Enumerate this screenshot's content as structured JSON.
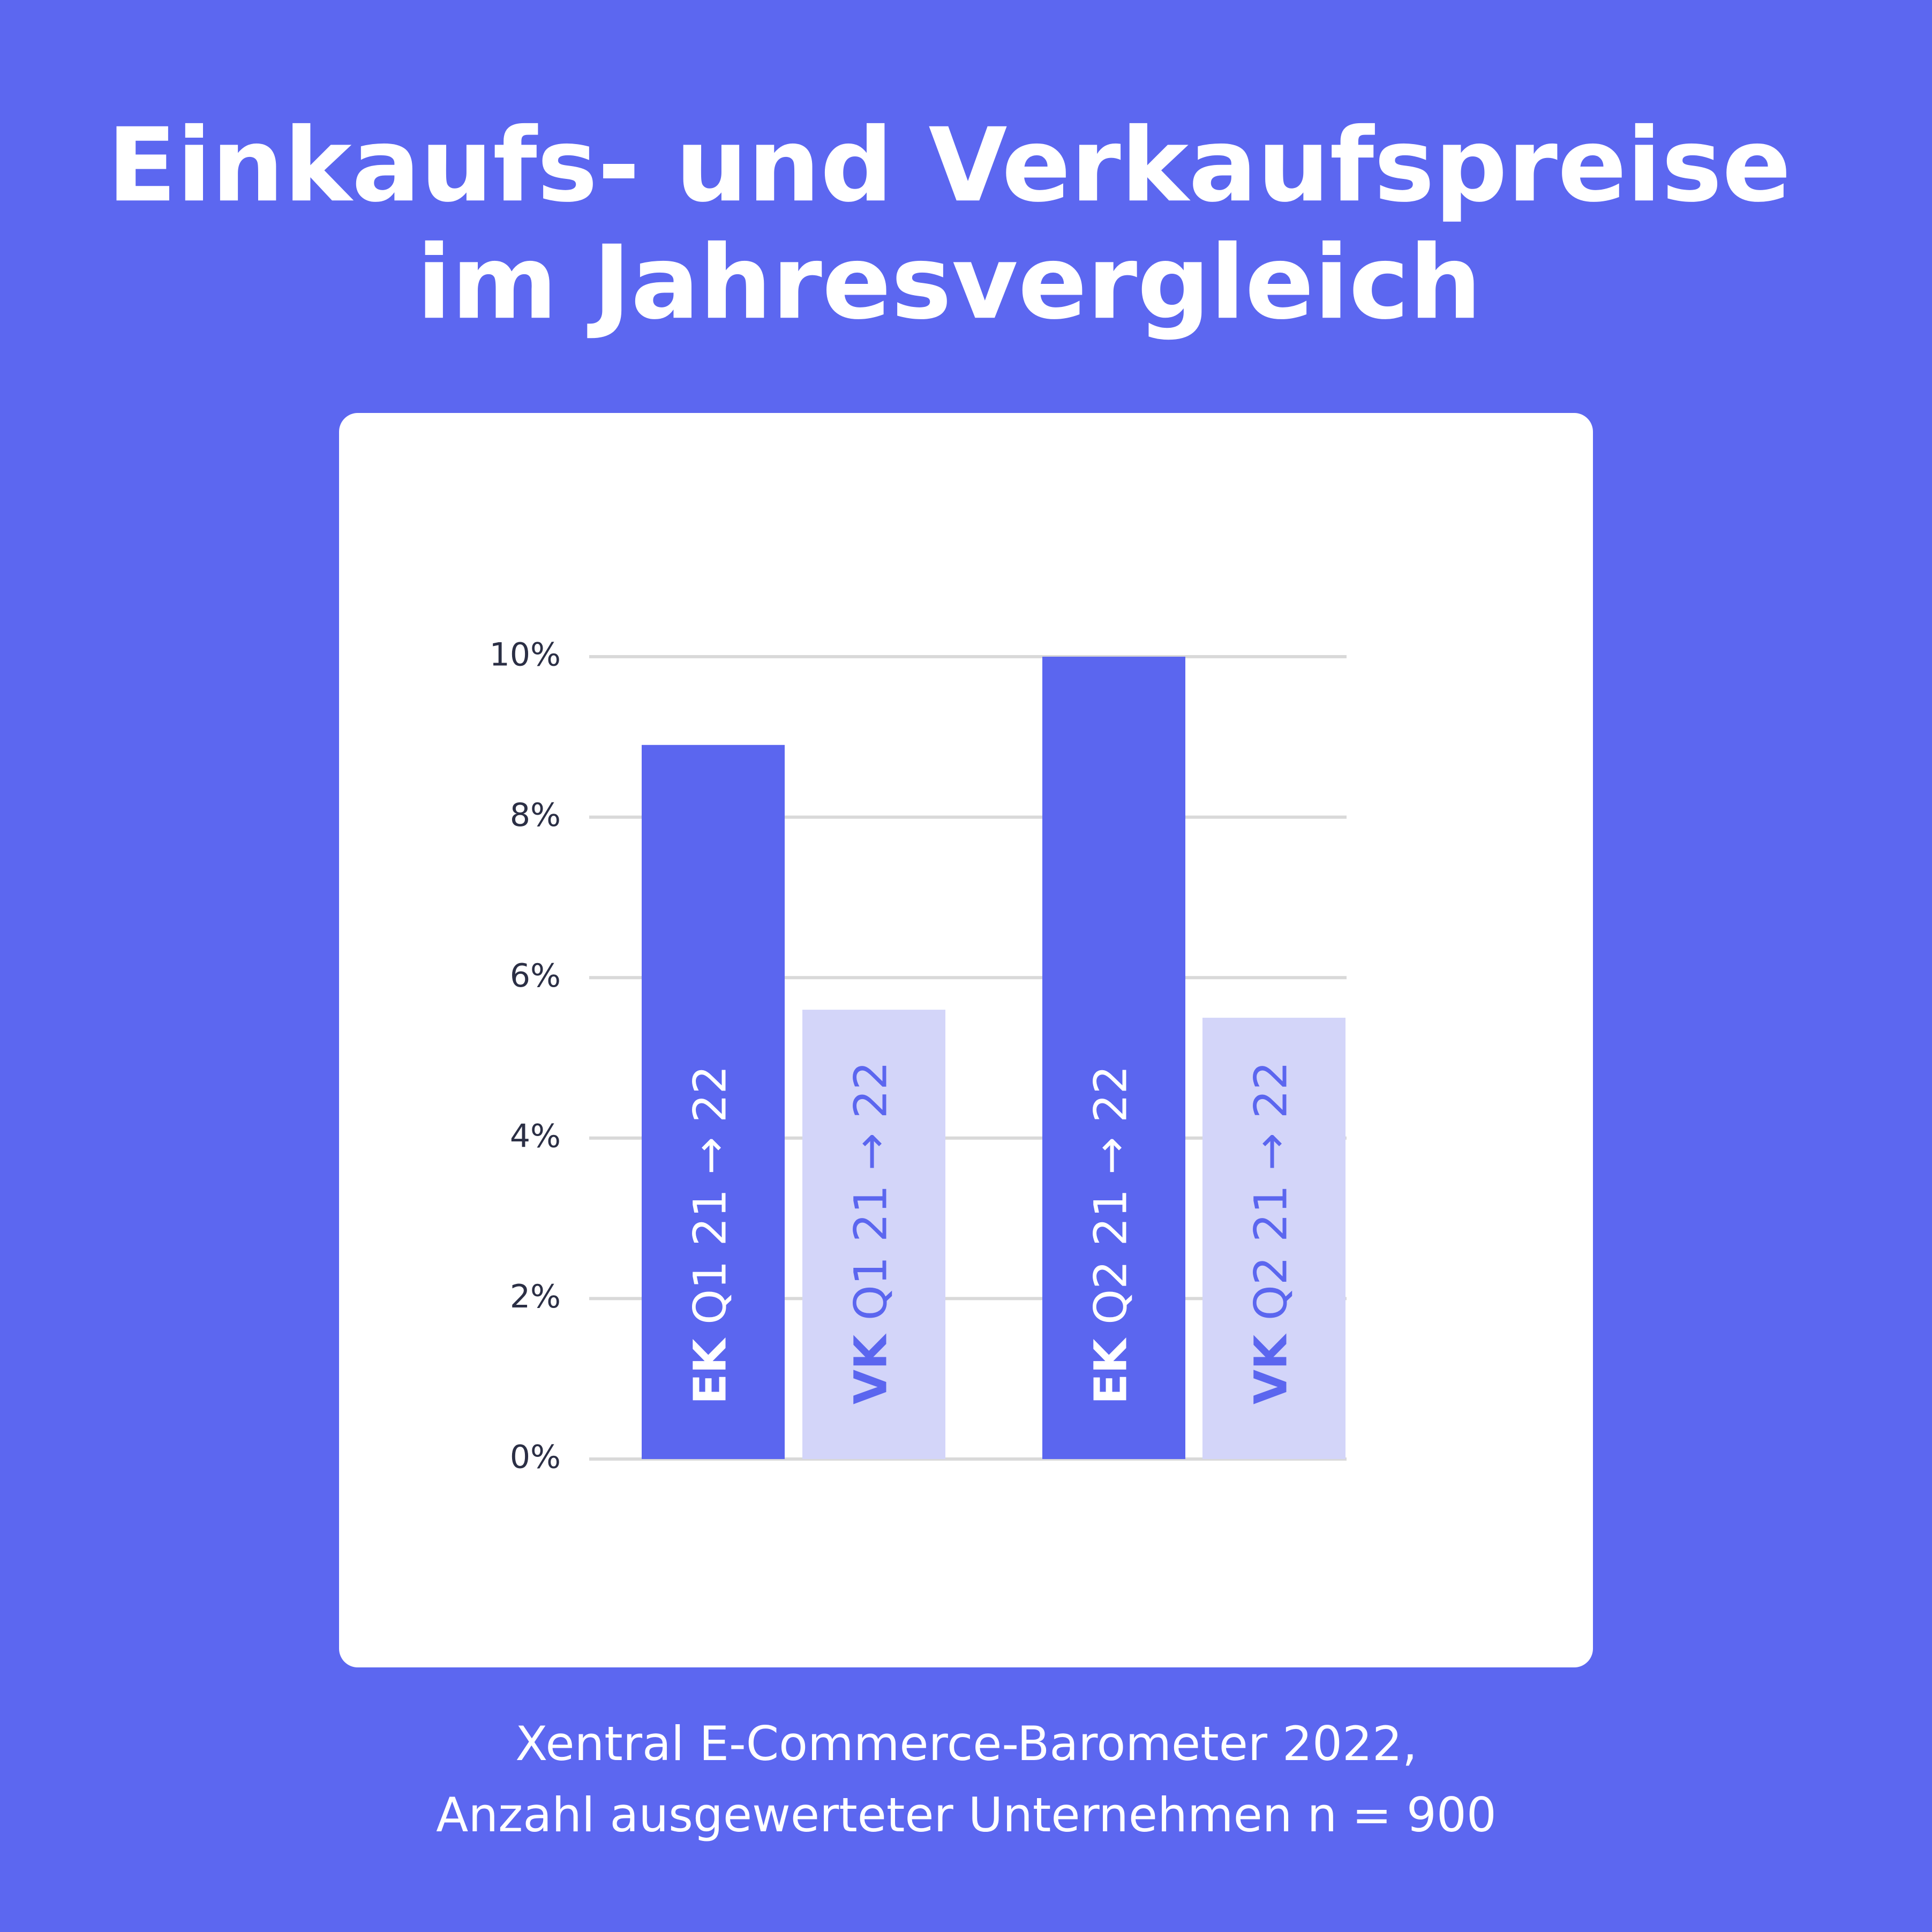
{
  "chart_data": {
    "type": "bar",
    "title": [
      "Einkaufs- und Verkaufspreise",
      "im Jahresvergleich"
    ],
    "categories": [
      "EK Q1 21 → 22",
      "VK Q1 21 → 22",
      "EK Q2 21 → 22",
      "VK Q2 21 → 22"
    ],
    "values": [
      8.9,
      5.6,
      10,
      5.5
    ],
    "colors": [
      "#5b66ef",
      "#d3d5f9",
      "#5b66ef",
      "#d3d5f9"
    ],
    "label_colors": [
      "#ffffff",
      "#5b66ef",
      "#ffffff",
      "#5b66ef"
    ],
    "ylim": [
      0,
      10
    ],
    "yticks": [
      {
        "value": 0,
        "label": "0%"
      },
      {
        "value": 2,
        "label": "2%"
      },
      {
        "value": 4,
        "label": "4%"
      },
      {
        "value": 6,
        "label": "6%"
      },
      {
        "value": 8,
        "label": "8%"
      },
      {
        "value": 10,
        "label": "10%"
      }
    ],
    "grid": true,
    "source": [
      "Xentral E-Commerce-Barometer 2022,",
      "Anzahl ausgewerteter Unternehmen n = 900"
    ]
  }
}
